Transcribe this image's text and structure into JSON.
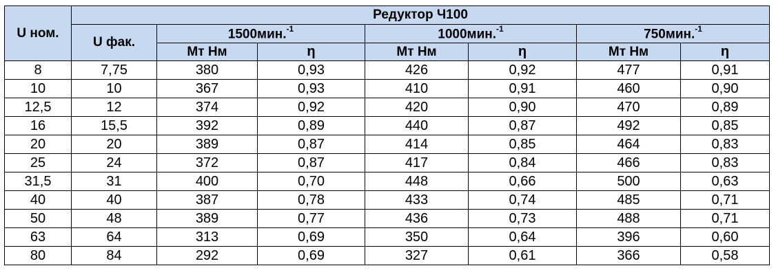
{
  "table": {
    "title": "Редуктор Ч100",
    "u_nom_header": "U ном.",
    "u_fact_header": "U фак.",
    "speeds": [
      {
        "value": "1500мин.",
        "exp": "-1"
      },
      {
        "value": "1000мин.",
        "exp": "-1"
      },
      {
        "value": "750мин.",
        "exp": "-1"
      }
    ],
    "mt_header": "Мт Нм",
    "eta_header": "η",
    "rows": [
      [
        "8",
        "7,75",
        "380",
        "0,93",
        "426",
        "0,92",
        "477",
        "0,91"
      ],
      [
        "10",
        "10",
        "367",
        "0,93",
        "410",
        "0,91",
        "460",
        "0,90"
      ],
      [
        "12,5",
        "12",
        "374",
        "0,92",
        "420",
        "0,90",
        "470",
        "0,89"
      ],
      [
        "16",
        "15,5",
        "392",
        "0,89",
        "440",
        "0,87",
        "492",
        "0,85"
      ],
      [
        "20",
        "20",
        "389",
        "0,87",
        "414",
        "0,85",
        "464",
        "0,83"
      ],
      [
        "25",
        "24",
        "372",
        "0,87",
        "417",
        "0,84",
        "466",
        "0,83"
      ],
      [
        "31,5",
        "31",
        "400",
        "0,70",
        "448",
        "0,66",
        "500",
        "0,63"
      ],
      [
        "40",
        "40",
        "387",
        "0,78",
        "433",
        "0,74",
        "485",
        "0,71"
      ],
      [
        "50",
        "48",
        "389",
        "0,77",
        "436",
        "0,73",
        "488",
        "0,71"
      ],
      [
        "63",
        "64",
        "313",
        "0,69",
        "350",
        "0,64",
        "396",
        "0,60"
      ],
      [
        "80",
        "84",
        "292",
        "0,69",
        "327",
        "0,61",
        "366",
        "0,58"
      ]
    ]
  },
  "colors": {
    "header_bg": "#c6d9f1",
    "border": "#000000",
    "text": "#000000"
  }
}
